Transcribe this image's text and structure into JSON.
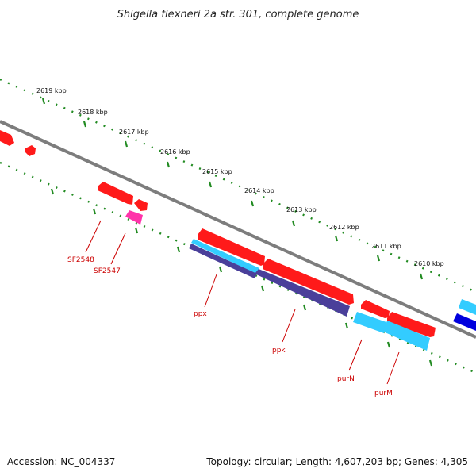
{
  "title": "Shigella flexneri 2a str. 301, complete genome",
  "footer": {
    "accession": "Accession: NC_004337",
    "summary": "Topology: circular; Length: 4,607,203 bp; Genes: 4,305"
  },
  "ticks": [
    "2619 kbp",
    "2618 kbp",
    "2617 kbp",
    "2616 kbp",
    "2615 kbp",
    "2614 kbp",
    "2613 kbp",
    "2612 kbp",
    "2611 kbp",
    "2610 kbp"
  ],
  "gene_labels": [
    "SF2548",
    "SF2547",
    "ppx",
    "ppk",
    "purN",
    "purM"
  ],
  "colors": {
    "backbone": "#808080",
    "tick_dots": "#228b22",
    "gene_red": "#ff1a1a",
    "gene_pink": "#ff33aa",
    "gene_cyan": "#33ccff",
    "gene_navy": "#4a3f9a",
    "gene_blue": "#0000dd",
    "label_red": "#cc0000"
  }
}
